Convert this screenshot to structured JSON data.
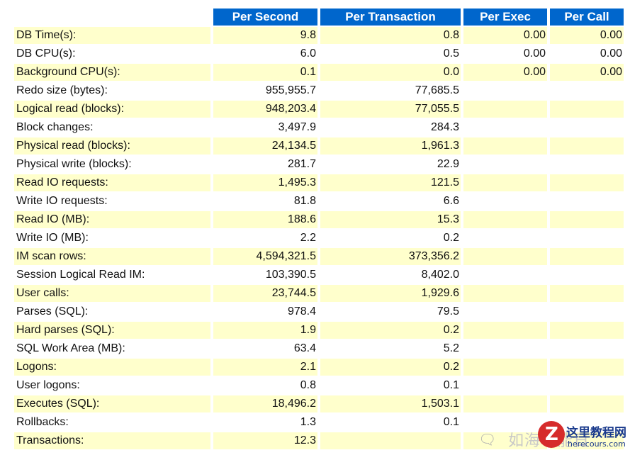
{
  "headers": [
    "",
    "Per Second",
    "Per Transaction",
    "Per Exec",
    "Per Call"
  ],
  "rows": [
    [
      "DB Time(s):",
      "9.8",
      "0.8",
      "0.00",
      "0.00"
    ],
    [
      "DB CPU(s):",
      "6.0",
      "0.5",
      "0.00",
      "0.00"
    ],
    [
      "Background CPU(s):",
      "0.1",
      "0.0",
      "0.00",
      "0.00"
    ],
    [
      "Redo size (bytes):",
      "955,955.7",
      "77,685.5",
      "",
      ""
    ],
    [
      "Logical read (blocks):",
      "948,203.4",
      "77,055.5",
      "",
      ""
    ],
    [
      "Block changes:",
      "3,497.9",
      "284.3",
      "",
      ""
    ],
    [
      "Physical read (blocks):",
      "24,134.5",
      "1,961.3",
      "",
      ""
    ],
    [
      "Physical write (blocks):",
      "281.7",
      "22.9",
      "",
      ""
    ],
    [
      "Read IO requests:",
      "1,495.3",
      "121.5",
      "",
      ""
    ],
    [
      "Write IO requests:",
      "81.8",
      "6.6",
      "",
      ""
    ],
    [
      "Read IO (MB):",
      "188.6",
      "15.3",
      "",
      ""
    ],
    [
      "Write IO (MB):",
      "2.2",
      "0.2",
      "",
      ""
    ],
    [
      "IM scan rows:",
      "4,594,321.5",
      "373,356.2",
      "",
      ""
    ],
    [
      "Session Logical Read IM:",
      "103,390.5",
      "8,402.0",
      "",
      ""
    ],
    [
      "User calls:",
      "23,744.5",
      "1,929.6",
      "",
      ""
    ],
    [
      "Parses (SQL):",
      "978.4",
      "79.5",
      "",
      ""
    ],
    [
      "Hard parses (SQL):",
      "1.9",
      "0.2",
      "",
      ""
    ],
    [
      "SQL Work Area (MB):",
      "63.4",
      "5.2",
      "",
      ""
    ],
    [
      "Logons:",
      "2.1",
      "0.2",
      "",
      ""
    ],
    [
      "User logons:",
      "0.8",
      "0.1",
      "",
      ""
    ],
    [
      "Executes (SQL):",
      "18,496.2",
      "1,503.1",
      "",
      ""
    ],
    [
      "Rollbacks:",
      "1.3",
      "0.1",
      "",
      ""
    ],
    [
      "Transactions:",
      "12.3",
      "",
      "",
      ""
    ]
  ],
  "watermark": {
    "faded_text": "如海中能日",
    "site_name": "这里教程网",
    "site_url": "herecours.com"
  }
}
